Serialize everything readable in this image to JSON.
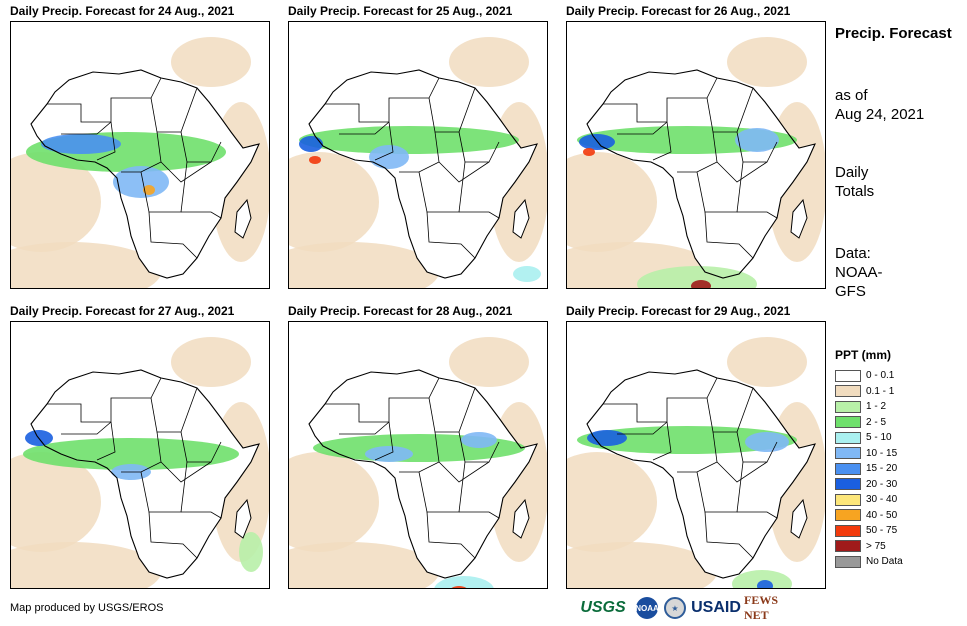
{
  "panels": [
    {
      "title": "Daily Precip. Forecast for 24 Aug., 2021"
    },
    {
      "title": "Daily Precip. Forecast for 25 Aug., 2021"
    },
    {
      "title": "Daily Precip. Forecast for 26 Aug., 2021"
    },
    {
      "title": "Daily Precip. Forecast for 27 Aug., 2021"
    },
    {
      "title": "Daily Precip. Forecast for 28 Aug., 2021"
    },
    {
      "title": "Daily Precip. Forecast for 29 Aug., 2021"
    }
  ],
  "side": {
    "title": "Precip. Forecast",
    "as_of": "as of",
    "date": "Aug 24, 2021",
    "daily": "Daily",
    "totals": "Totals",
    "data_label": "Data:",
    "source_1": "NOAA-",
    "source_2": "GFS"
  },
  "legend": {
    "title": "PPT (mm)",
    "items": [
      {
        "label": "0 - 0.1",
        "color": "#ffffff"
      },
      {
        "label": "0.1 - 1",
        "color": "#f1dcbf"
      },
      {
        "label": "1 - 2",
        "color": "#b8f0a8"
      },
      {
        "label": "2 - 5",
        "color": "#6fe06c"
      },
      {
        "label": "5 - 10",
        "color": "#aaf0f0"
      },
      {
        "label": "10 - 15",
        "color": "#80b8f5"
      },
      {
        "label": "15 - 20",
        "color": "#4a90f0"
      },
      {
        "label": "20 - 30",
        "color": "#1a5fe0"
      },
      {
        "label": "30 - 40",
        "color": "#fce67a"
      },
      {
        "label": "40 - 50",
        "color": "#f7a421"
      },
      {
        "label": "50 - 75",
        "color": "#f23a0c"
      },
      {
        "label": "> 75",
        "color": "#a01a1a"
      },
      {
        "label": "No Data",
        "color": "#999999"
      }
    ]
  },
  "footer": {
    "credit": "Map produced by USGS/EROS",
    "logos": {
      "usgs": "USGS",
      "noaa": "NOAA",
      "usaid": "USAID",
      "fews": "FEWS NET"
    }
  }
}
